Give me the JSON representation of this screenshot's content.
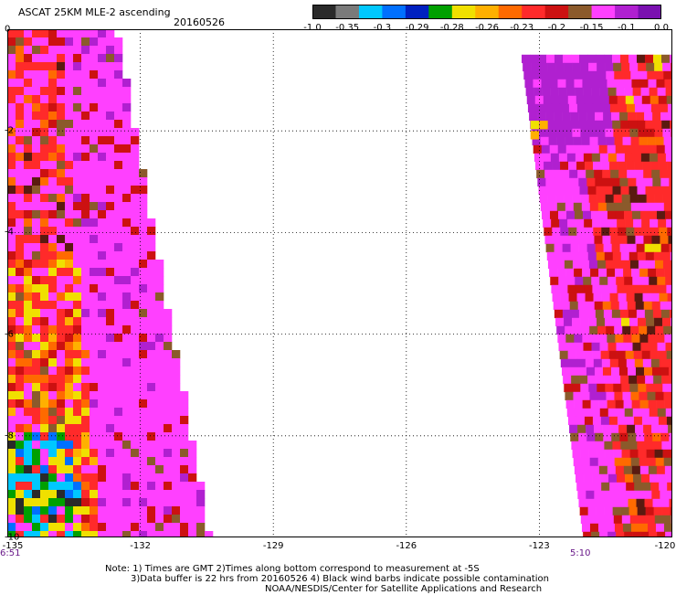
{
  "header": {
    "title": "ASCAT 25KM MLE-2 ascending",
    "date": "20160526"
  },
  "legend": {
    "labels": [
      "-1.0",
      "-0.35",
      "-0.3",
      "-0.29",
      "-0.28",
      "-0.26",
      "-0.23",
      "-0.2",
      "-0.15",
      "-0.1",
      "0.0"
    ],
    "colors": [
      "#2a2a2a",
      "#7a7a7a",
      "#00c8ff",
      "#0070ff",
      "#0020c0",
      "#00a000",
      "#f0e000",
      "#ffb000",
      "#ff6a00",
      "#ff2a2a",
      "#cc1111",
      "#8b5a2b",
      "#ff40ff",
      "#b020d0",
      "#7a10b0"
    ]
  },
  "axes": {
    "x_ticks": [
      "-135",
      "-132",
      "-129",
      "-126",
      "-123",
      "-120"
    ],
    "y_ticks": [
      "0",
      "-2",
      "-4",
      "-6",
      "-8",
      "-10"
    ],
    "x_range": [
      -135,
      -120
    ],
    "y_range": [
      -10,
      0
    ]
  },
  "times": {
    "left": "6:51",
    "right": "5:10"
  },
  "notes": {
    "line1": "Note: 1) Times are GMT 2)Times along bottom correspond to measurement at -5S",
    "line2": "3)Data buffer is 22 hrs from 20160526 4) Black wind barbs indicate possible contamination",
    "line3": "NOAA/NESDIS/Center for Satellite Applications and Research"
  },
  "chart_data": {
    "type": "heatmap",
    "title": "ASCAT 25KM MLE-2 ascending",
    "xlim": [
      -135,
      -120
    ],
    "ylim": [
      -10,
      0
    ],
    "grid": true,
    "swaths": [
      {
        "name": "",
        "lon_west_edge": -135.0,
        "lon_east_edge_top": -132.6,
        "lon_east_edge_bottom": -130.5,
        "lat_top": 0.0,
        "lat_bottom": -10.0,
        "time": "6:51"
      },
      {
        "name": "",
        "lon_west_edge_top": -123.4,
        "lon_west_edge_bottom": -122.0,
        "lon_east_edge": -120.0,
        "lat_top": -0.5,
        "lat_bottom": -10.0,
        "time": "5:10"
      }
    ]
  }
}
